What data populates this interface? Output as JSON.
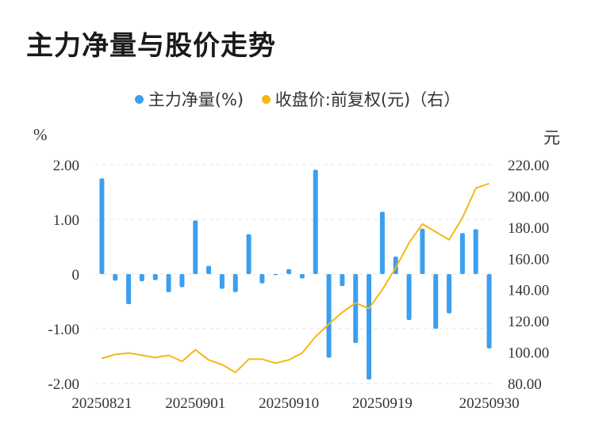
{
  "page": {
    "title": "主力净量与股价走势"
  },
  "chart_data": {
    "type": "bar+line",
    "title": "主力净量与股价走势",
    "legend": [
      {
        "label": "主力净量(%)",
        "color": "#3b9ff0"
      },
      {
        "label": "收盘价:前复权(元)（右）",
        "color": "#f5b716"
      }
    ],
    "left_axis": {
      "unit": "%",
      "range": [
        -2,
        2
      ],
      "ticks": [
        "2.00",
        "1.00",
        "0",
        "-1.00",
        "-2.00"
      ]
    },
    "right_axis": {
      "unit": "元",
      "range": [
        80,
        220
      ],
      "ticks": [
        "220.00",
        "200.00",
        "180.00",
        "160.00",
        "140.00",
        "120.00",
        "100.00",
        "80.00"
      ]
    },
    "x_tick_labels": [
      "20250821",
      "20250901",
      "20250910",
      "20250919",
      "20250930"
    ],
    "x_tick_index": [
      0,
      7,
      14,
      21,
      29
    ],
    "bars": {
      "name": "主力净量(%)",
      "values": [
        1.75,
        -0.12,
        -0.55,
        -0.13,
        -0.11,
        -0.33,
        -0.24,
        0.98,
        0.15,
        -0.27,
        -0.33,
        0.73,
        -0.17,
        -0.02,
        0.09,
        -0.08,
        1.91,
        -1.53,
        -0.22,
        -1.26,
        -1.93,
        1.14,
        0.32,
        -0.84,
        0.83,
        -1.0,
        -0.72,
        0.75,
        0.82,
        -1.36
      ]
    },
    "line": {
      "name": "收盘价:前复权(元)（右）",
      "values": [
        96,
        98.5,
        99.5,
        98,
        96.5,
        98,
        94,
        101.5,
        95,
        92,
        87,
        95.5,
        95.5,
        93,
        95,
        99.5,
        110,
        118,
        125.5,
        131.5,
        128,
        140,
        154,
        170,
        182,
        177,
        172,
        186,
        205,
        208
      ]
    }
  }
}
